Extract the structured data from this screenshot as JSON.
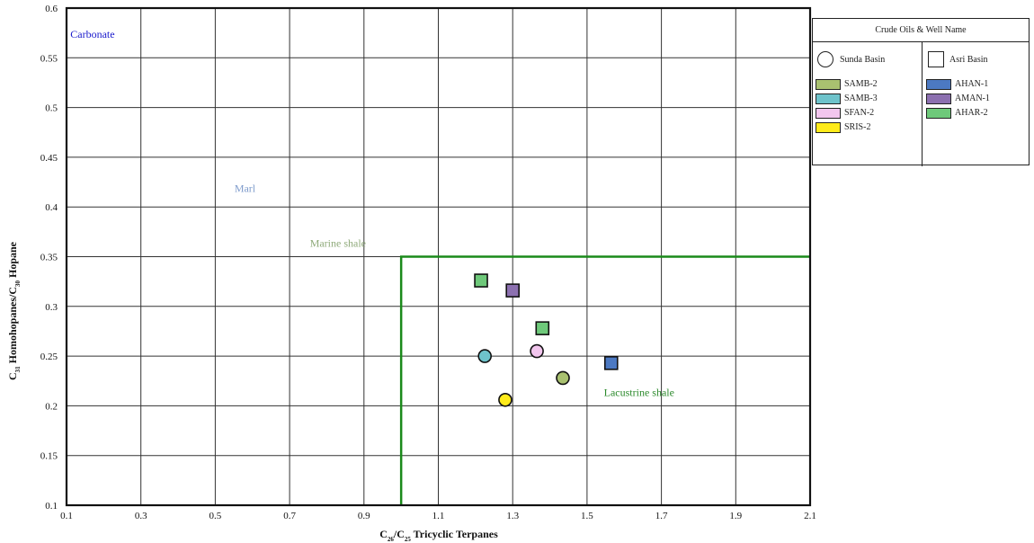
{
  "chart_data": {
    "type": "scatter",
    "xlabel": "C26/C25 Tricyclic Terpanes",
    "ylabel": "C31 Homohopanes/C30 Hopane",
    "xlim": [
      0.1,
      2.1
    ],
    "ylim": [
      0.1,
      0.6
    ],
    "x_ticks": [
      "0.1",
      "0.3",
      "0.5",
      "0.7",
      "0.9",
      "1.1",
      "1.3",
      "1.5",
      "1.7",
      "1.9",
      "2.1"
    ],
    "y_ticks": [
      "0.1",
      "0.15",
      "0.2",
      "0.25",
      "0.3",
      "0.35",
      "0.4",
      "0.45",
      "0.5",
      "0.55",
      "0.6"
    ],
    "grid": true,
    "regions": [
      {
        "label": "Carbonate",
        "color": "#1a1acc",
        "label_x": 0.17,
        "label_y": 0.57
      },
      {
        "label": "Marl",
        "color": "#7f9ccc",
        "label_x": 0.58,
        "label_y": 0.415
      },
      {
        "label": "Marine shale",
        "color": "#8faa7a",
        "label_x": 0.83,
        "label_y": 0.36
      },
      {
        "label": "Lacustrine shale",
        "color": "#2c8a2c",
        "label_x": 1.64,
        "label_y": 0.21
      }
    ],
    "boundary": {
      "color": "#1a8a1a",
      "x": 1.0,
      "y": 0.35
    },
    "legend": {
      "title": "Crude Oils & Well Name",
      "groups": [
        {
          "basin": "Sunda Basin",
          "marker": "circle",
          "wells": [
            {
              "name": "SAMB-2",
              "color": "#a9c170"
            },
            {
              "name": "SAMB-3",
              "color": "#6ec3cb"
            },
            {
              "name": "SFAN-2",
              "color": "#f2c6ee"
            },
            {
              "name": "SRIS-2",
              "color": "#ffeb1a"
            }
          ]
        },
        {
          "basin": "Asri Basin",
          "marker": "square",
          "wells": [
            {
              "name": "AHAN-1",
              "color": "#4c79c2"
            },
            {
              "name": "AMAN-1",
              "color": "#8c70b0"
            },
            {
              "name": "AHAR-2",
              "color": "#6ec97a"
            }
          ]
        }
      ]
    },
    "points": [
      {
        "well": "AHAR-2",
        "marker": "square",
        "color": "#6ec97a",
        "x": 1.215,
        "y": 0.326
      },
      {
        "well": "AMAN-1",
        "marker": "square",
        "color": "#8c70b0",
        "x": 1.3,
        "y": 0.316
      },
      {
        "well": "AHAR-2",
        "marker": "square",
        "color": "#6ec97a",
        "x": 1.38,
        "y": 0.278
      },
      {
        "well": "AHAN-1",
        "marker": "square",
        "color": "#4c79c2",
        "x": 1.565,
        "y": 0.243
      },
      {
        "well": "SAMB-3",
        "marker": "circle",
        "color": "#6ec3cb",
        "x": 1.225,
        "y": 0.25
      },
      {
        "well": "SFAN-2",
        "marker": "circle",
        "color": "#f2c6ee",
        "x": 1.365,
        "y": 0.255
      },
      {
        "well": "SAMB-2",
        "marker": "circle",
        "color": "#a9c170",
        "x": 1.435,
        "y": 0.228
      },
      {
        "well": "SRIS-2",
        "marker": "circle",
        "color": "#ffeb1a",
        "x": 1.28,
        "y": 0.206
      }
    ]
  }
}
